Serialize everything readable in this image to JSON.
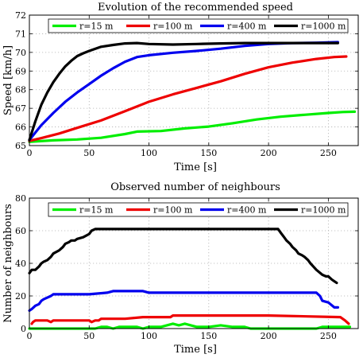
{
  "chart_data": [
    {
      "type": "line",
      "title": "Evolution of the recommended speed",
      "xlabel": "Time [s]",
      "ylabel": "Speed [km/h]",
      "xlim": [
        0,
        275
      ],
      "ylim": [
        65,
        72
      ],
      "xticks": [
        0,
        50,
        100,
        150,
        200,
        250
      ],
      "yticks": [
        65,
        66,
        67,
        68,
        69,
        70,
        71,
        72
      ],
      "grid": true,
      "legend": "top",
      "series": [
        {
          "name": "r=15 m",
          "color": "#00ee00",
          "x": [
            0,
            20,
            40,
            60,
            80,
            90,
            110,
            130,
            150,
            170,
            190,
            210,
            230,
            250,
            262,
            272
          ],
          "y": [
            65.2,
            65.28,
            65.33,
            65.42,
            65.62,
            65.75,
            65.78,
            65.92,
            66.02,
            66.2,
            66.4,
            66.55,
            66.65,
            66.75,
            66.8,
            66.82
          ]
        },
        {
          "name": "r=100 m",
          "color": "#ee0000",
          "x": [
            0,
            10,
            25,
            40,
            60,
            80,
            100,
            120,
            140,
            160,
            180,
            200,
            220,
            240,
            255,
            265
          ],
          "y": [
            65.25,
            65.4,
            65.65,
            65.95,
            66.35,
            66.85,
            67.35,
            67.75,
            68.1,
            68.45,
            68.85,
            69.2,
            69.45,
            69.65,
            69.75,
            69.78
          ]
        },
        {
          "name": "r=400 m",
          "color": "#0000ee",
          "x": [
            0,
            5,
            10,
            20,
            30,
            40,
            50,
            60,
            70,
            80,
            90,
            100,
            120,
            140,
            160,
            180,
            200,
            220,
            240,
            258
          ],
          "y": [
            65.3,
            65.7,
            66.1,
            66.75,
            67.35,
            67.85,
            68.3,
            68.75,
            69.15,
            69.5,
            69.75,
            69.85,
            69.98,
            70.08,
            70.2,
            70.35,
            70.45,
            70.5,
            70.52,
            70.55
          ]
        },
        {
          "name": "r=1000 m",
          "color": "#000000",
          "x": [
            0,
            5,
            10,
            15,
            20,
            25,
            30,
            35,
            40,
            45,
            50,
            60,
            70,
            80,
            90,
            100,
            120,
            140,
            160,
            180,
            200,
            220,
            240,
            258
          ],
          "y": [
            65.3,
            66.3,
            67.2,
            67.85,
            68.4,
            68.85,
            69.25,
            69.55,
            69.8,
            69.95,
            70.08,
            70.3,
            70.4,
            70.48,
            70.5,
            70.45,
            70.42,
            70.45,
            70.48,
            70.5,
            70.5,
            70.5,
            70.5,
            70.5
          ]
        }
      ]
    },
    {
      "type": "line",
      "title": "Observed number of neighbours",
      "xlabel": "Time [s]",
      "ylabel": "Number of neighbours",
      "xlim": [
        0,
        275
      ],
      "ylim": [
        0,
        80
      ],
      "xticks": [
        0,
        50,
        100,
        150,
        200,
        250
      ],
      "yticks": [
        0,
        20,
        40,
        60,
        80
      ],
      "grid": true,
      "legend": "top",
      "series": [
        {
          "name": "r=15 m",
          "color": "#00ee00",
          "x": [
            0,
            55,
            60,
            65,
            70,
            75,
            90,
            95,
            100,
            110,
            115,
            120,
            125,
            130,
            135,
            140,
            150,
            160,
            170,
            180,
            185,
            240,
            245,
            268
          ],
          "y": [
            0,
            0,
            1,
            1,
            0,
            1,
            1,
            0,
            1,
            1,
            2,
            3,
            2,
            3,
            2,
            1,
            1,
            2,
            1,
            1,
            0,
            0,
            1,
            1
          ]
        },
        {
          "name": "r=100 m",
          "color": "#ee0000",
          "x": [
            2,
            3,
            5,
            8,
            15,
            18,
            20,
            30,
            40,
            45,
            50,
            52,
            55,
            58,
            60,
            75,
            80,
            95,
            100,
            118,
            120,
            190,
            200,
            260,
            264,
            267
          ],
          "y": [
            3,
            4,
            5,
            5,
            5,
            4,
            5,
            5,
            5,
            5,
            5,
            4,
            5,
            5,
            6,
            6,
            6,
            7,
            7,
            7,
            8,
            8,
            8,
            7,
            5,
            3
          ]
        },
        {
          "name": "r=400 m",
          "color": "#0000ee",
          "x": [
            0,
            2,
            5,
            8,
            10,
            12,
            15,
            18,
            20,
            22,
            25,
            50,
            65,
            70,
            95,
            100,
            240,
            243,
            245,
            250,
            255,
            258
          ],
          "y": [
            11,
            12,
            14,
            15,
            17,
            18,
            19,
            20,
            21,
            21,
            21,
            21,
            22,
            23,
            23,
            22,
            22,
            20,
            17,
            16,
            13,
            13
          ]
        },
        {
          "name": "r=1000 m",
          "color": "#000000",
          "x": [
            0,
            2,
            5,
            8,
            10,
            12,
            15,
            18,
            20,
            25,
            28,
            30,
            33,
            35,
            38,
            40,
            45,
            50,
            52,
            55,
            60,
            100,
            150,
            200,
            208,
            210,
            213,
            215,
            218,
            220,
            223,
            225,
            228,
            230,
            233,
            235,
            240,
            245,
            248,
            250,
            253,
            255,
            257
          ],
          "y": [
            34,
            36,
            36,
            38,
            40,
            41,
            42,
            44,
            46,
            48,
            50,
            52,
            53,
            54,
            54,
            55,
            56,
            58,
            60,
            61,
            61,
            61,
            61,
            61,
            61,
            59,
            56,
            54,
            52,
            50,
            48,
            46,
            45,
            44,
            42,
            40,
            36,
            33,
            32,
            32,
            30,
            29,
            28
          ]
        }
      ]
    }
  ]
}
